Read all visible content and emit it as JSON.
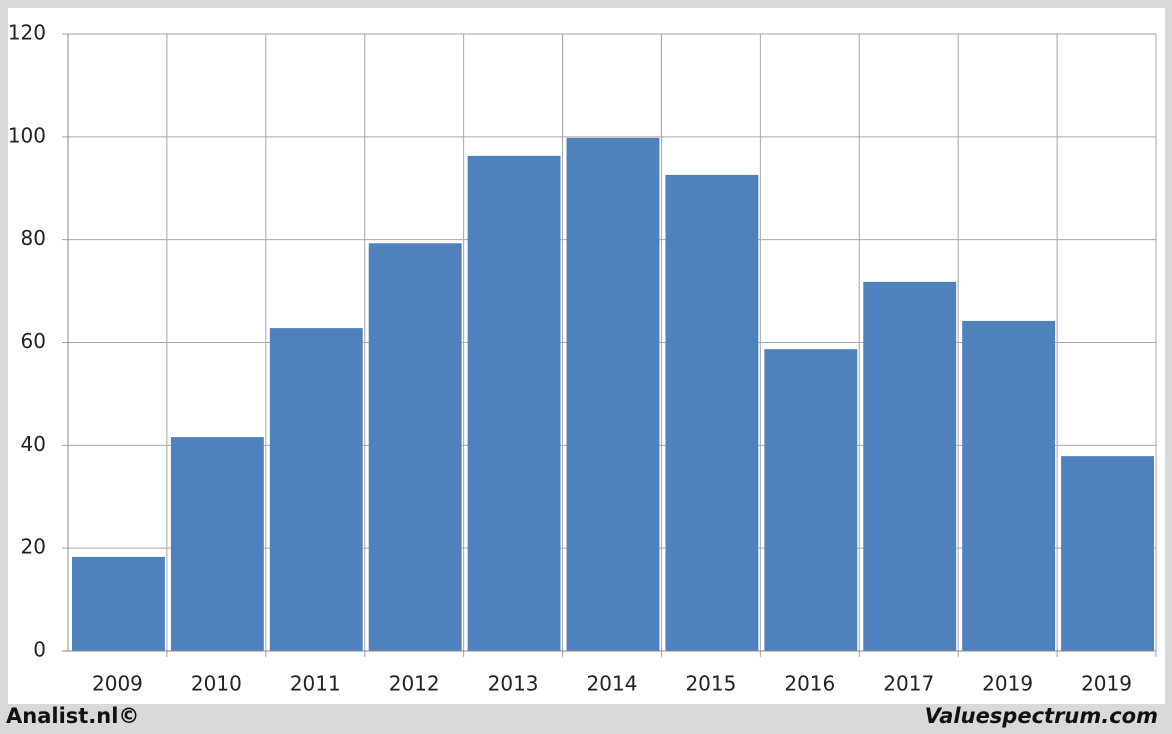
{
  "chart_data": {
    "type": "bar",
    "categories": [
      "2009",
      "2010",
      "2011",
      "2012",
      "2013",
      "2014",
      "2015",
      "2016",
      "2017",
      "2019",
      "2019"
    ],
    "values": [
      18.3,
      41.6,
      62.8,
      79.3,
      96.3,
      99.8,
      92.6,
      58.7,
      71.8,
      64.2,
      37.9
    ],
    "color": "#4f81bd",
    "ylim": [
      0,
      120
    ],
    "yticks": [
      0,
      20,
      40,
      60,
      80,
      100,
      120
    ],
    "grid": true
  },
  "footer": {
    "left": "Analist.nl©",
    "right": "Valuespectrum.com"
  }
}
